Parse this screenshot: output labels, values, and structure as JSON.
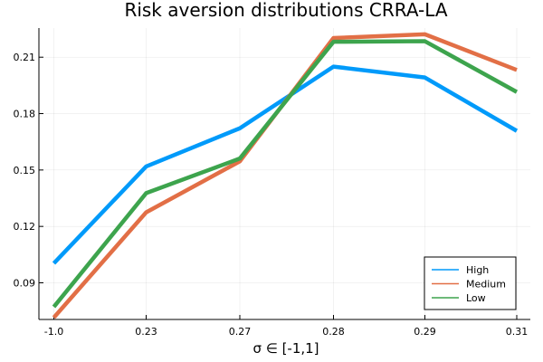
{
  "chart_data": {
    "type": "line",
    "title": "Risk aversion distributions CRRA-LA",
    "xlabel": "σ ∈ [-1,1]",
    "ylabel": "",
    "categories": [
      "-1.0",
      "0.23",
      "0.27",
      "0.28",
      "0.29",
      "0.31"
    ],
    "yticks": [
      "0.09",
      "0.12",
      "0.15",
      "0.18",
      "0.21"
    ],
    "ytick_values": [
      0.09,
      0.12,
      0.15,
      0.18,
      0.21
    ],
    "ylim": [
      0.0705,
      0.2255
    ],
    "grid": true,
    "legend_position": "bottom-right",
    "series": [
      {
        "name": "High",
        "color": "#009AFA",
        "values": [
          0.1004,
          0.1519,
          0.1722,
          0.205,
          0.1992,
          0.1708
        ]
      },
      {
        "name": "Medium",
        "color": "#E26F46",
        "values": [
          0.0715,
          0.1275,
          0.1546,
          0.2202,
          0.2222,
          0.2032
        ]
      },
      {
        "name": "Low",
        "color": "#3DA44D",
        "values": [
          0.0772,
          0.1377,
          0.1561,
          0.2182,
          0.2185,
          0.1915
        ]
      }
    ]
  }
}
